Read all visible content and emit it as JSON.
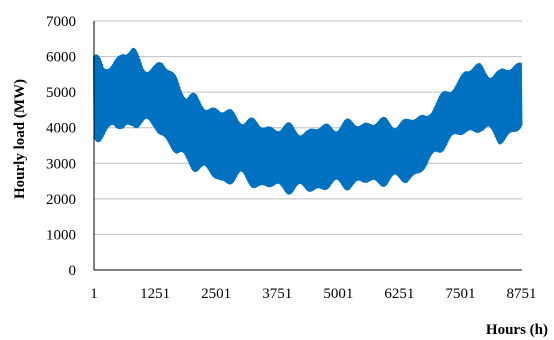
{
  "chart_data": {
    "type": "area",
    "title": "",
    "xlabel": "Hours (h)",
    "ylabel": "Hourly load (MW)",
    "xlim": [
      1,
      8760
    ],
    "ylim": [
      0,
      7000
    ],
    "x_ticks": [
      1,
      1251,
      2501,
      3751,
      5001,
      6251,
      7501,
      8751
    ],
    "y_ticks": [
      0,
      1000,
      2000,
      3000,
      4000,
      5000,
      6000,
      7000
    ],
    "grid": "horizontal",
    "series": [
      {
        "color": "#0070C0",
        "envelope_x": [
          1,
          200,
          400,
          600,
          800,
          1000,
          1250,
          1400,
          1700,
          1900,
          2300,
          2600,
          3000,
          3400,
          3900,
          4400,
          4800,
          5200,
          5600,
          6000,
          6400,
          6800,
          7000,
          7300,
          7600,
          7900,
          8300,
          8751
        ],
        "max": [
          6250,
          5750,
          6050,
          6350,
          6300,
          5900,
          5850,
          5950,
          5600,
          5050,
          4800,
          4650,
          4450,
          4200,
          4150,
          4050,
          4200,
          4250,
          4300,
          4300,
          4300,
          4500,
          4800,
          5200,
          5750,
          5850,
          5650,
          6050
        ],
        "min": [
          3500,
          3700,
          3850,
          3700,
          4000,
          3950,
          3900,
          3650,
          3050,
          2900,
          2600,
          2300,
          2450,
          2200,
          2150,
          2100,
          2200,
          2250,
          2300,
          2350,
          2400,
          2750,
          3200,
          3550,
          3700,
          3850,
          3500,
          3800
        ]
      }
    ]
  }
}
